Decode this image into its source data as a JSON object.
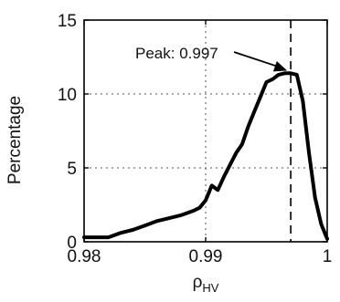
{
  "chart_data": {
    "type": "line",
    "xlabel": "ρ",
    "xlabel_subscript": "HV",
    "ylabel": "Percentage",
    "xlim": [
      0.98,
      1.0
    ],
    "ylim": [
      0,
      15
    ],
    "xticks": [
      0.98,
      0.99,
      1.0
    ],
    "xtick_labels": [
      "0.98",
      "0.99",
      "1"
    ],
    "yticks": [
      0,
      5,
      10,
      15
    ],
    "ytick_labels": [
      "0",
      "5",
      "10",
      "15"
    ],
    "grid": "dotted",
    "series": [
      {
        "color": "#000000",
        "x": [
          0.98,
          0.981,
          0.982,
          0.983,
          0.984,
          0.985,
          0.986,
          0.987,
          0.988,
          0.989,
          0.9895,
          0.99,
          0.9905,
          0.991,
          0.9915,
          0.992,
          0.9925,
          0.993,
          0.9935,
          0.994,
          0.9945,
          0.995,
          0.9955,
          0.996,
          0.9965,
          0.997,
          0.9975,
          0.998,
          0.9985,
          0.999,
          0.9995,
          1.0
        ],
        "y": [
          0.3,
          0.3,
          0.3,
          0.6,
          0.8,
          1.1,
          1.4,
          1.6,
          1.8,
          2.1,
          2.3,
          2.8,
          3.8,
          3.5,
          4.4,
          5.2,
          6.0,
          6.6,
          7.8,
          8.8,
          9.8,
          10.8,
          11.0,
          11.3,
          11.4,
          11.4,
          11.3,
          9.5,
          6.0,
          3.0,
          1.2,
          0.2
        ]
      }
    ],
    "vline": {
      "x": 0.997,
      "style": "dashed"
    },
    "annotation": {
      "text": "Peak: 0.997",
      "target": {
        "x": 0.997,
        "y": 11.4
      }
    }
  }
}
